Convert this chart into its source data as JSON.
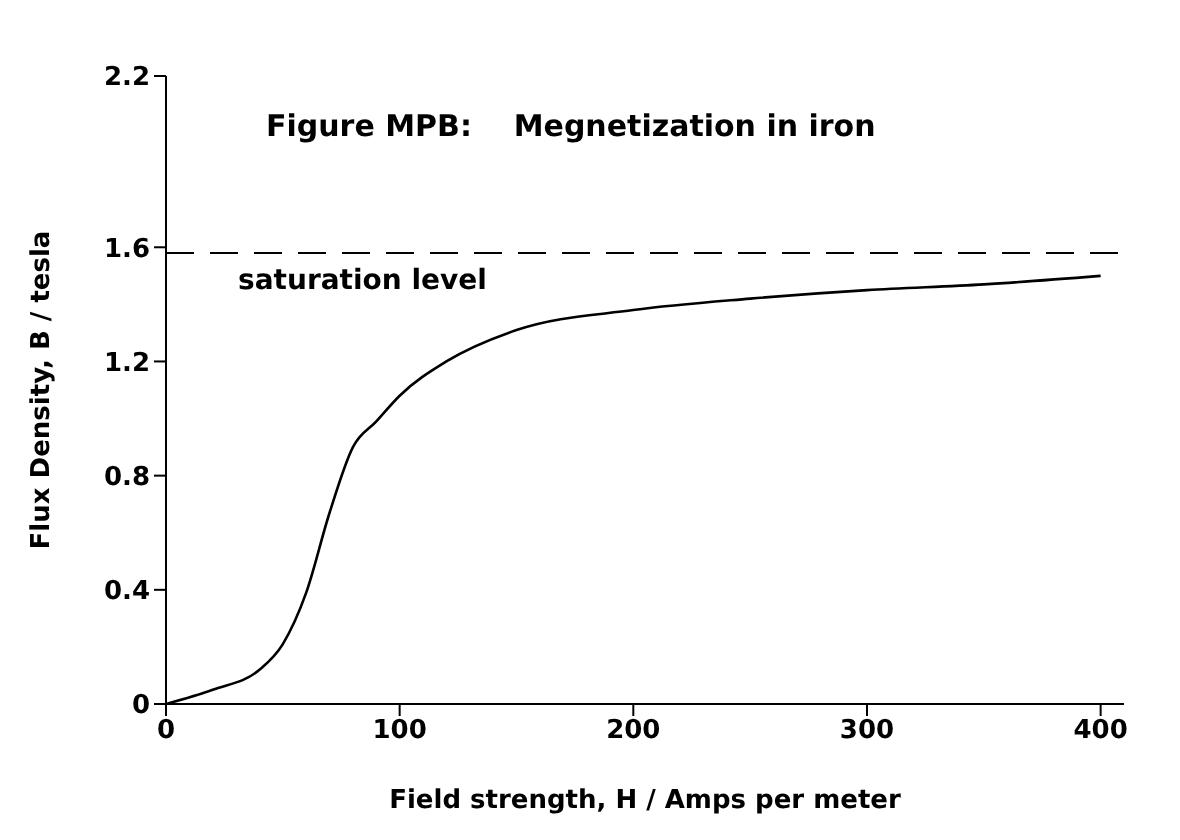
{
  "chart_data": {
    "type": "line",
    "title": "Figure MPB:    Megnetization in iron",
    "xlabel": "Field strength,   H / Amps per meter",
    "ylabel": "Flux Density,   B / tesla",
    "x": [
      0,
      20,
      40,
      50,
      60,
      70,
      80,
      90,
      100,
      120,
      150,
      200,
      250,
      300,
      350,
      400
    ],
    "series": [
      {
        "color": "#000000",
        "values": [
          0,
          0.05,
          0.12,
          0.21,
          0.39,
          0.67,
          0.9,
          0.99,
          1.08,
          1.2,
          1.31,
          1.38,
          1.42,
          1.45,
          1.47,
          1.5
        ]
      }
    ],
    "xlim": [
      0,
      410
    ],
    "xticks": [
      0,
      100,
      200,
      300,
      400
    ],
    "ylim": [
      0,
      2.2
    ],
    "yticks": [
      0,
      0.4,
      0.8,
      1.2,
      1.6,
      2.2
    ],
    "ref_lines": [
      {
        "axis": "y",
        "value": 1.58,
        "label": "saturation level",
        "color": "#000000",
        "line_style": "dashed"
      }
    ],
    "grid": false,
    "legend": false,
    "marker": "none",
    "line_style": "solid"
  }
}
